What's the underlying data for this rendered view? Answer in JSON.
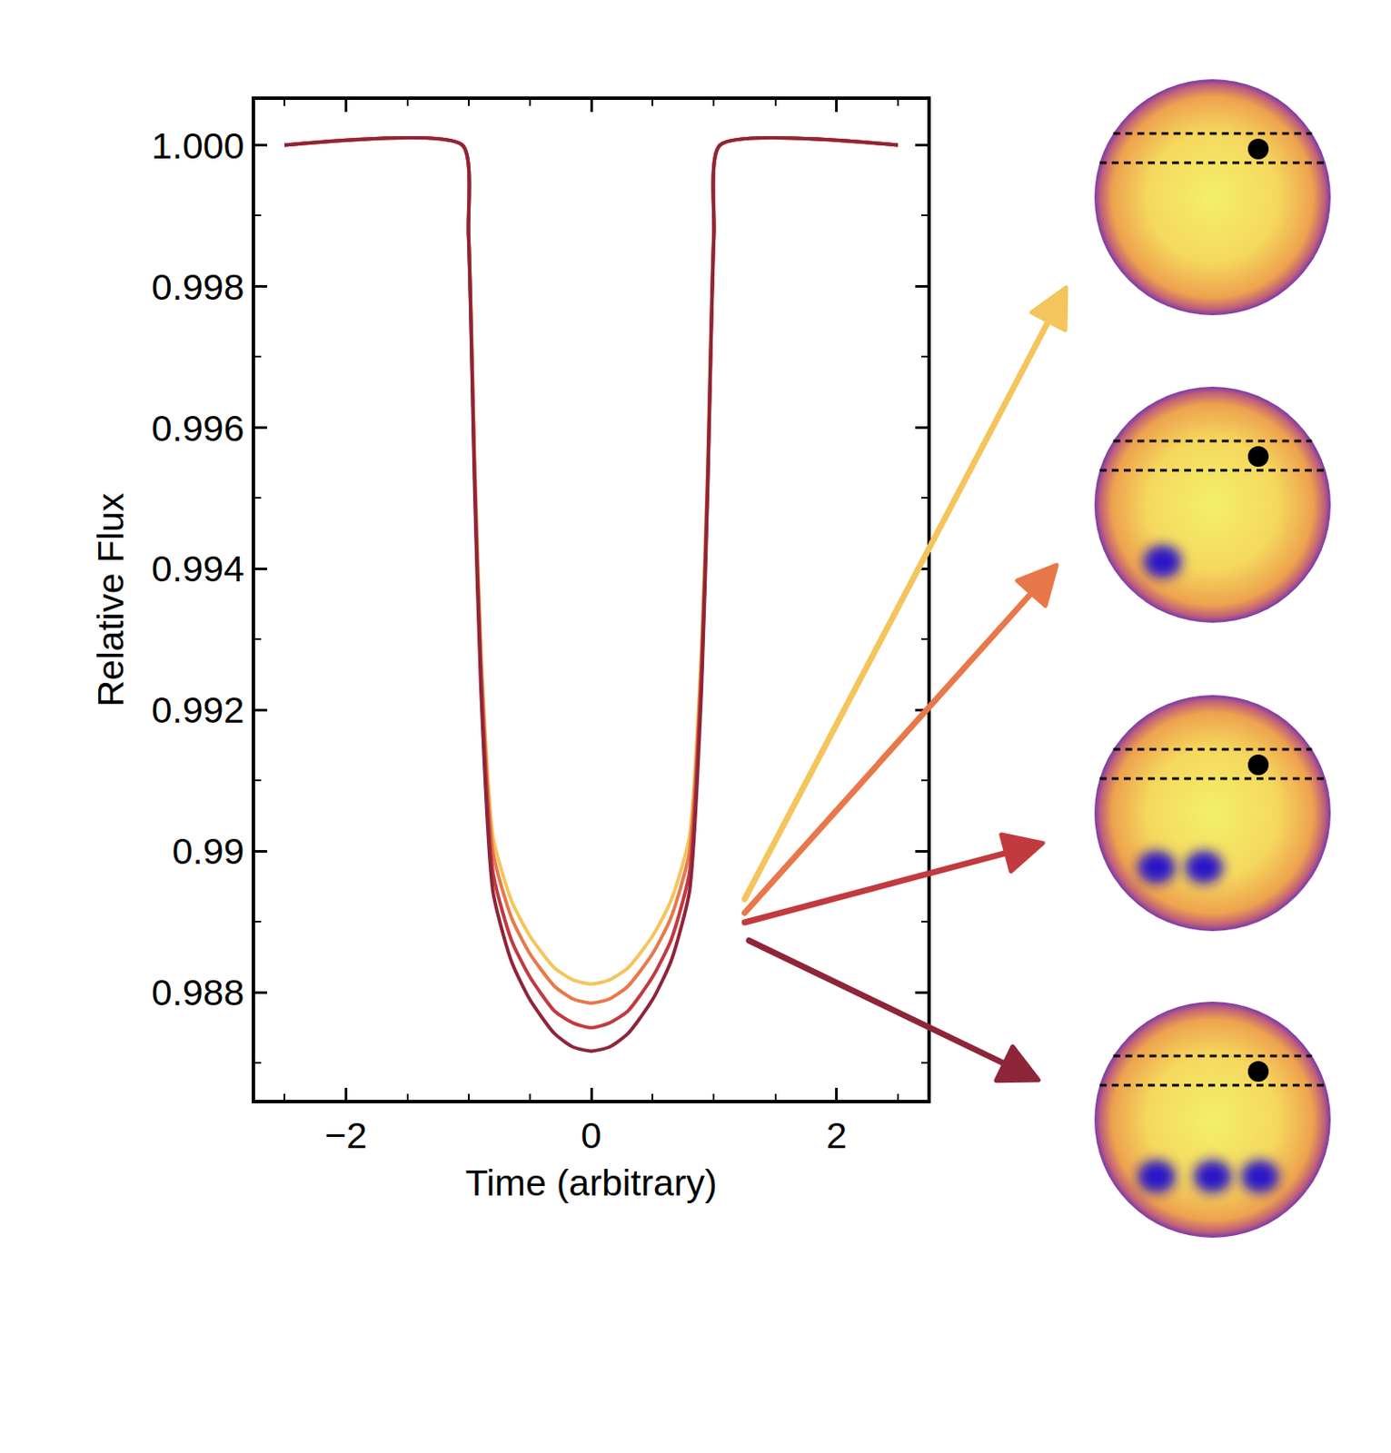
{
  "chart_data": {
    "type": "line",
    "x_label": "Time (arbitrary)",
    "y_label": "Relative Flux",
    "x": [
      -2.5,
      -1.05,
      -1.0,
      -0.95,
      -0.9,
      -0.8,
      -0.65,
      -0.5,
      -0.3,
      -0.15,
      0,
      0.15,
      0.3,
      0.5,
      0.65,
      0.8,
      0.9,
      0.95,
      1.0,
      1.05,
      2.5
    ],
    "series": [
      {
        "color": "#f3c55c",
        "values": [
          1,
          1,
          0.9988,
          0.9955,
          0.9929,
          0.9902,
          0.9893,
          0.9888,
          0.98835,
          0.98818,
          0.98812,
          0.98818,
          0.98835,
          0.9888,
          0.9893,
          0.9902,
          0.9929,
          0.9955,
          0.9988,
          1,
          1
        ]
      },
      {
        "color": "#e8784a",
        "values": [
          1,
          1,
          0.99877,
          0.9954,
          0.99274,
          0.98998,
          0.98906,
          0.98855,
          0.98809,
          0.98791,
          0.98785,
          0.98791,
          0.98809,
          0.98855,
          0.98906,
          0.98998,
          0.99274,
          0.9954,
          0.99877,
          1,
          1
        ]
      },
      {
        "color": "#c13a40",
        "values": [
          1,
          1,
          0.99874,
          0.99527,
          0.99253,
          0.98969,
          0.98874,
          0.98822,
          0.98774,
          0.98757,
          0.9875,
          0.98757,
          0.98774,
          0.98822,
          0.98874,
          0.98969,
          0.99253,
          0.99527,
          0.99874,
          1,
          1
        ]
      },
      {
        "color": "#8e2539",
        "values": [
          1,
          1,
          0.9987,
          0.99514,
          0.99233,
          0.98942,
          0.98844,
          0.9879,
          0.98742,
          0.98723,
          0.98717,
          0.98723,
          0.98742,
          0.9879,
          0.98844,
          0.98942,
          0.99233,
          0.99514,
          0.9987,
          1,
          1
        ]
      }
    ],
    "xlim": [
      -2.74,
      2.74
    ],
    "ylim": [
      0.98648,
      1.00064
    ],
    "xticks": [
      {
        "value": -2,
        "label": "−2"
      },
      0,
      2
    ],
    "yticks": [
      {
        "value": 0.988,
        "label": "0.988"
      },
      0.99,
      0.992,
      0.994,
      0.996,
      0.998,
      {
        "value": 1,
        "label": "1.000"
      }
    ],
    "grid": false
  }
}
